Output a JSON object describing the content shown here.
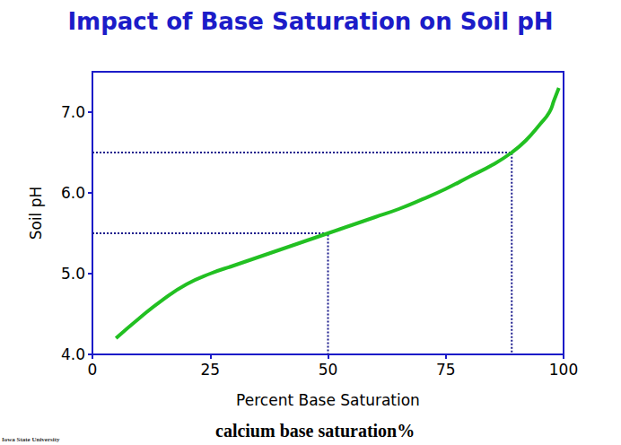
{
  "chart_data": {
    "type": "line",
    "title": "Impact of Base Saturation on Soil pH",
    "x_label": "Percent Base Saturation",
    "y_label": "Soil pH",
    "annotations": [
      "calcium base saturation%",
      "Iowa State University"
    ],
    "x": [
      5,
      10,
      15,
      20,
      25,
      30,
      35,
      40,
      45,
      50,
      55,
      60,
      65,
      70,
      75,
      80,
      85,
      89,
      92,
      95,
      97,
      98,
      99
    ],
    "values": [
      4.2,
      4.45,
      4.68,
      4.87,
      5.0,
      5.1,
      5.2,
      5.3,
      5.4,
      5.5,
      5.6,
      5.7,
      5.8,
      5.92,
      6.05,
      6.2,
      6.35,
      6.5,
      6.65,
      6.85,
      7.0,
      7.15,
      7.3
    ],
    "color": "#22c022",
    "marker": "none",
    "line_style": "solid",
    "reference_lines": [
      {
        "x": 50,
        "y": 5.5,
        "color": "#1a1a8c",
        "line_style": "dotted"
      },
      {
        "x": 89,
        "y": 6.5,
        "color": "#1a1a8c",
        "line_style": "dotted"
      }
    ],
    "xlim": [
      0,
      100
    ],
    "xticks": [
      0,
      25,
      50,
      75,
      100
    ],
    "ylim": [
      4,
      7.5
    ],
    "yticks": [
      {
        "value": 4,
        "label": "4.0"
      },
      {
        "value": 5,
        "label": "5.0"
      },
      {
        "value": 6,
        "label": "6.0"
      },
      {
        "value": 7,
        "label": "7.0"
      }
    ],
    "grid": false
  }
}
